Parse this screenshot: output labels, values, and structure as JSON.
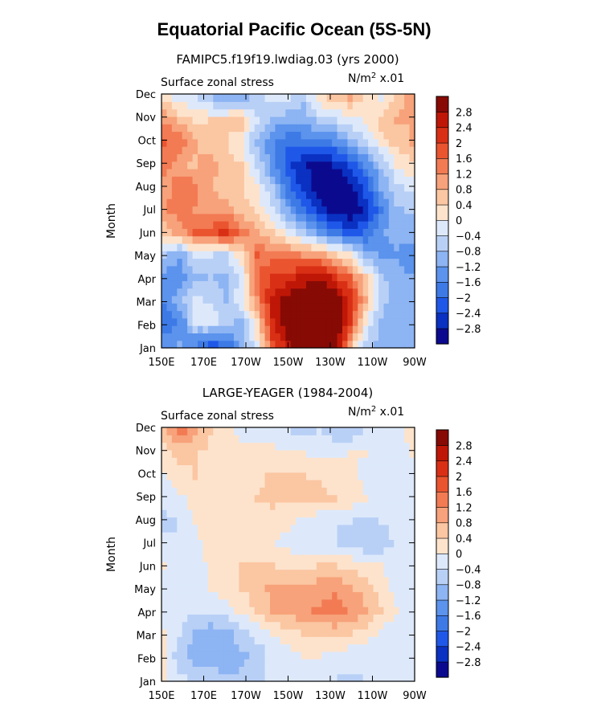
{
  "figure": {
    "title": "Equatorial Pacific Ocean (5S-5N)",
    "ylabel": "Month",
    "field_label": "Surface zonal stress",
    "units": "N/m",
    "units_sup": "2",
    "units_scale": "x.01"
  },
  "colors": [
    "#0b0a8f",
    "#0a31c2",
    "#1f58e8",
    "#3d7ae6",
    "#5b93ed",
    "#8db4f3",
    "#b9d0f6",
    "#dde9fb",
    "#fde3cc",
    "#fbc6a2",
    "#f7a27a",
    "#f27b54",
    "#ea552f",
    "#d93015",
    "#bf1707",
    "#870a05"
  ],
  "chart_data": [
    {
      "type": "heatmap",
      "name": "top-panel",
      "title": "FAMIPC5.f19f19.lwdiag.03 (yrs 2000)",
      "xlabel": "",
      "ylabel": "Month",
      "x_ticks": [
        "150E",
        "170E",
        "170W",
        "150W",
        "130W",
        "110W",
        "90W"
      ],
      "y_ticks": [
        "Jan",
        "Feb",
        "Mar",
        "Apr",
        "May",
        "Jun",
        "Jul",
        "Aug",
        "Sep",
        "Oct",
        "Nov",
        "Dec"
      ],
      "colorbar_levels": [
        "2.8",
        "2.4",
        "2",
        "1.6",
        "1.2",
        "0.8",
        "0.4",
        "0",
        "−0.4",
        "−0.8",
        "−1.2",
        "−1.6",
        "−2",
        "−2.4",
        "−2.8"
      ],
      "z": [
        [
          -1.4,
          -1.2,
          -1.6,
          -2.2,
          -1.9,
          -1.1,
          -0.1,
          1.8,
          2.6,
          3.4,
          3.6,
          3.3,
          0.9,
          -0.6,
          -1.0,
          -0.9,
          -0.9
        ],
        [
          -1.9,
          -1.6,
          -0.4,
          -0.1,
          -0.6,
          -1.0,
          0.3,
          2.4,
          3.2,
          3.6,
          3.8,
          3.6,
          2.1,
          0.1,
          -0.9,
          -1.0,
          -0.9
        ],
        [
          -1.5,
          -1.0,
          -0.3,
          -0.5,
          -0.9,
          -0.1,
          1.2,
          2.6,
          3.0,
          3.2,
          3.4,
          3.2,
          2.4,
          0.8,
          -0.6,
          -1.0,
          -1.0
        ],
        [
          -1.3,
          -1.5,
          -0.9,
          -0.8,
          -0.9,
          -0.2,
          1.5,
          2.0,
          2.2,
          2.6,
          2.8,
          2.2,
          1.6,
          0.4,
          -0.7,
          -1.0,
          -1.2
        ],
        [
          -0.8,
          -1.1,
          -0.4,
          -0.4,
          -0.5,
          0.3,
          1.6,
          1.4,
          1.3,
          1.2,
          1.1,
          0.6,
          0.0,
          -0.9,
          -1.3,
          -1.3,
          -1.4
        ],
        [
          0.6,
          1.0,
          1.6,
          1.7,
          2.2,
          1.4,
          0.9,
          0.5,
          -0.2,
          -0.7,
          -1.3,
          -1.8,
          -2.2,
          -2.0,
          -1.3,
          -0.9,
          -1.1
        ],
        [
          1.2,
          1.4,
          1.2,
          1.1,
          1.0,
          0.7,
          0.3,
          -0.3,
          -1.2,
          -1.9,
          -2.5,
          -3.1,
          -3.2,
          -2.7,
          -1.7,
          -0.9,
          -0.7
        ],
        [
          1.0,
          1.4,
          1.4,
          0.8,
          0.6,
          0.4,
          0.0,
          -0.8,
          -1.8,
          -2.6,
          -3.0,
          -3.2,
          -3.0,
          -2.2,
          -1.2,
          -0.5,
          -0.3
        ],
        [
          1.3,
          1.0,
          0.7,
          1.1,
          0.6,
          0.4,
          -0.5,
          -1.4,
          -2.2,
          -2.8,
          -2.9,
          -2.8,
          -2.4,
          -1.6,
          -0.8,
          0.0,
          0.3
        ],
        [
          1.6,
          1.5,
          0.9,
          0.4,
          0.4,
          0.0,
          -0.9,
          -1.5,
          -2.0,
          -1.9,
          -1.9,
          -1.6,
          -1.1,
          -0.5,
          0.1,
          0.6,
          0.8
        ],
        [
          1.2,
          0.7,
          0.3,
          0.4,
          0.6,
          0.7,
          -0.4,
          -0.9,
          -1.1,
          -1.0,
          -0.7,
          -0.5,
          -0.2,
          0.0,
          0.6,
          0.9,
          0.8
        ],
        [
          0.3,
          -0.2,
          -0.4,
          -0.8,
          -1.2,
          -1.0,
          -0.5,
          -0.2,
          -0.3,
          -0.7,
          0.2,
          0.6,
          0.8,
          0.3,
          -0.1,
          0.6,
          1.0
        ]
      ]
    },
    {
      "type": "heatmap",
      "name": "bottom-panel",
      "title": "LARGE-YEAGER (1984-2004)",
      "xlabel": "",
      "ylabel": "Month",
      "x_ticks": [
        "150E",
        "170E",
        "170W",
        "150W",
        "130W",
        "110W",
        "90W"
      ],
      "y_ticks": [
        "Jan",
        "Feb",
        "Mar",
        "Apr",
        "May",
        "Jun",
        "Jul",
        "Aug",
        "Sep",
        "Oct",
        "Nov",
        "Dec"
      ],
      "colorbar_levels": [
        "2.8",
        "2.4",
        "2",
        "1.6",
        "1.2",
        "0.8",
        "0.4",
        "0",
        "−0.4",
        "−0.8",
        "−1.2",
        "−1.6",
        "−2",
        "−2.4",
        "−2.8"
      ],
      "z": [
        [
          0.1,
          -0.3,
          -0.5,
          -0.6,
          -0.8,
          -0.7,
          -0.5,
          -0.3,
          -0.2,
          -0.1,
          -0.2,
          -0.4,
          -0.5,
          -0.4,
          -0.3,
          -0.2,
          -0.2
        ],
        [
          0.1,
          -0.7,
          -1.0,
          -1.0,
          -1.1,
          -0.9,
          -0.6,
          -0.3,
          -0.1,
          0.0,
          0.0,
          -0.1,
          -0.2,
          -0.3,
          -0.3,
          -0.2,
          -0.2
        ],
        [
          0.0,
          -0.4,
          -0.9,
          -1.1,
          -0.9,
          -0.6,
          -0.3,
          0.0,
          0.2,
          0.4,
          0.5,
          0.5,
          0.4,
          0.2,
          -0.1,
          -0.2,
          -0.3
        ],
        [
          -0.2,
          -0.3,
          -0.3,
          -0.3,
          -0.2,
          0.1,
          0.4,
          0.8,
          1.0,
          1.1,
          1.3,
          1.4,
          1.2,
          0.9,
          0.4,
          0.0,
          -0.3
        ],
        [
          -0.1,
          -0.2,
          -0.3,
          0.0,
          0.2,
          0.4,
          0.7,
          0.9,
          0.9,
          0.8,
          1.0,
          1.1,
          0.9,
          0.6,
          0.2,
          -0.2,
          -0.4
        ],
        [
          0.0,
          -0.2,
          -0.4,
          0.2,
          0.3,
          0.4,
          0.4,
          0.4,
          0.3,
          0.3,
          0.4,
          0.4,
          0.3,
          0.2,
          0.0,
          -0.2,
          -0.3
        ],
        [
          -0.3,
          -0.4,
          -0.2,
          0.3,
          0.3,
          0.2,
          0.1,
          0.0,
          -0.1,
          -0.3,
          -0.4,
          -0.4,
          -0.5,
          -0.8,
          -0.6,
          -0.3,
          -0.3
        ],
        [
          -0.5,
          -0.4,
          0.0,
          0.2,
          0.2,
          0.1,
          0.1,
          0.2,
          0.1,
          -0.1,
          -0.3,
          -0.4,
          -0.4,
          -0.5,
          -0.4,
          -0.3,
          -0.2
        ],
        [
          -0.3,
          -0.1,
          0.2,
          0.2,
          0.2,
          0.2,
          0.4,
          0.5,
          0.5,
          0.6,
          0.6,
          0.4,
          0.2,
          0.0,
          -0.1,
          -0.2,
          -0.1
        ],
        [
          -0.1,
          0.3,
          0.4,
          0.3,
          0.2,
          0.2,
          0.3,
          0.5,
          0.5,
          0.4,
          0.3,
          0.2,
          0.1,
          -0.1,
          -0.2,
          -0.2,
          -0.1
        ],
        [
          0.2,
          0.5,
          0.4,
          0.3,
          0.2,
          0.1,
          0.2,
          0.2,
          0.1,
          0.0,
          -0.1,
          -0.1,
          0.0,
          0.0,
          -0.1,
          -0.1,
          0.0
        ],
        [
          0.6,
          1.3,
          1.0,
          0.4,
          0.1,
          -0.1,
          -0.2,
          -0.3,
          -0.4,
          -0.5,
          -0.4,
          -0.6,
          -0.7,
          -0.4,
          -0.3,
          -0.1,
          0.1
        ]
      ]
    }
  ]
}
